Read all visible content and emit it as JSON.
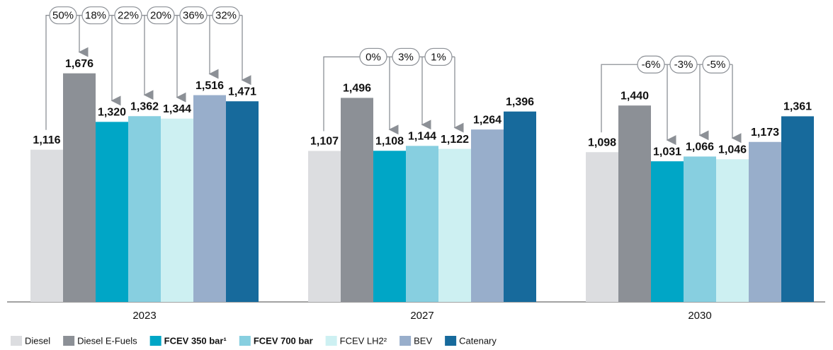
{
  "chart_data": {
    "type": "bar",
    "categories": [
      "2023",
      "2027",
      "2030"
    ],
    "ylim": [
      0,
      2200
    ],
    "series": [
      {
        "name": "Diesel",
        "color": "#dcdde0",
        "values": [
          1116,
          1107,
          1098
        ],
        "value_labels": [
          "1,116",
          "1,107",
          "1,098"
        ]
      },
      {
        "name": "Diesel E-Fuels",
        "color": "#8c9096",
        "values": [
          1676,
          1496,
          1440
        ],
        "value_labels": [
          "1,676",
          "1,496",
          "1,440"
        ],
        "change_labels": [
          "50%",
          null,
          null
        ]
      },
      {
        "name": "FCEV 350 bar¹",
        "color": "#00a6c6",
        "bold": true,
        "values": [
          1320,
          1108,
          1031
        ],
        "value_labels": [
          "1,320",
          "1,108",
          "1,031"
        ],
        "change_labels": [
          "18%",
          "0%",
          "-6%"
        ]
      },
      {
        "name": "FCEV 700 bar",
        "color": "#87cfe0",
        "bold": true,
        "values": [
          1362,
          1144,
          1066
        ],
        "value_labels": [
          "1,362",
          "1,144",
          "1,066"
        ],
        "change_labels": [
          "22%",
          "3%",
          "-3%"
        ]
      },
      {
        "name": "FCEV LH2²",
        "color": "#cdf0f2",
        "values": [
          1344,
          1122,
          1046
        ],
        "value_labels": [
          "1,344",
          "1,122",
          "1,046"
        ],
        "change_labels": [
          "20%",
          "1%",
          "-5%"
        ]
      },
      {
        "name": "BEV",
        "color": "#98aecb",
        "values": [
          1516,
          1264,
          1173
        ],
        "value_labels": [
          "1,516",
          "1,264",
          "1,173"
        ],
        "change_labels": [
          "36%",
          null,
          null
        ]
      },
      {
        "name": "Catenary",
        "color": "#176a9c",
        "values": [
          1471,
          1396,
          1361
        ],
        "value_labels": [
          "1,471",
          "1,396",
          "1,361"
        ],
        "change_labels": [
          "32%",
          null,
          null
        ]
      }
    ]
  }
}
